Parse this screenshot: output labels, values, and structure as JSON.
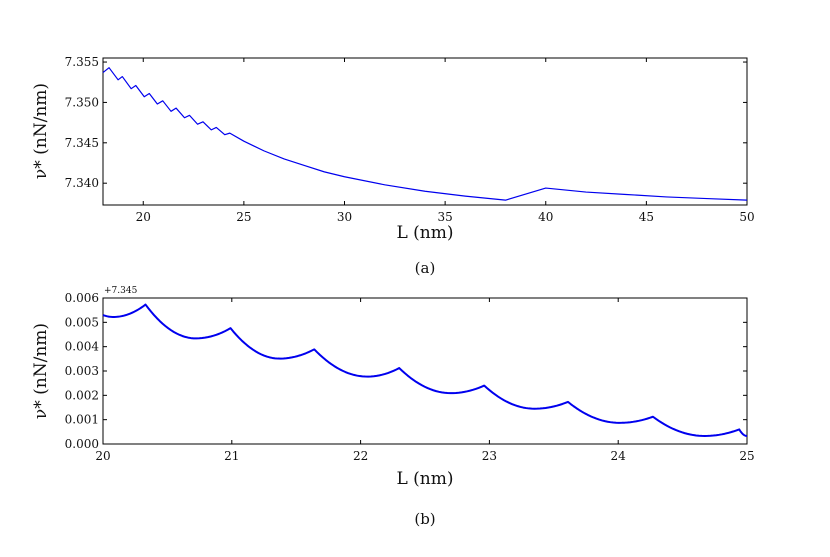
{
  "chart_data": [
    {
      "panel": "a",
      "type": "line",
      "caption": "(a)",
      "xlabel": "L (nm)",
      "ylabel": "ν* (nN/nm)",
      "xlim": [
        18,
        50
      ],
      "ylim": [
        7.3373,
        7.3555
      ],
      "xticks": [
        20,
        25,
        30,
        35,
        40,
        45,
        50
      ],
      "yticks": [
        7.34,
        7.345,
        7.35,
        7.355
      ],
      "ytick_labels": [
        "7.340",
        "7.345",
        "7.350",
        "7.355"
      ],
      "color": "#0000ee",
      "series": [
        {
          "x": [
            18.0,
            18.3,
            18.3,
            18.75,
            18.96,
            18.96,
            19.4,
            19.63,
            19.63,
            20.05,
            20.3,
            20.3,
            20.7,
            20.97,
            20.97,
            21.38,
            21.63,
            21.63,
            22.05,
            22.3,
            22.3,
            22.7,
            22.97,
            22.97,
            23.38,
            23.63,
            23.63,
            24.05,
            24.3,
            24.3,
            25.0,
            26.0,
            27.0,
            28.0,
            29.0,
            30.0,
            32.0,
            34.0,
            36.0,
            38.0,
            40.0,
            42.0,
            44.0,
            46.0,
            48.0,
            50.0
          ],
          "y": [
            7.3537,
            7.3543,
            7.3543,
            7.3528,
            7.3532,
            7.3532,
            7.3517,
            7.3521,
            7.3521,
            7.3507,
            7.3511,
            7.3511,
            7.3498,
            7.3502,
            7.3502,
            7.3489,
            7.3493,
            7.3493,
            7.3481,
            7.3484,
            7.3484,
            7.3473,
            7.3476,
            7.3476,
            7.3466,
            7.3469,
            7.3469,
            7.346,
            7.3462,
            7.3462,
            7.3452,
            7.344,
            7.343,
            7.3422,
            7.3414,
            7.3408,
            7.3398,
            7.339,
            7.3384,
            7.3379,
            7.3394,
            7.3389,
            7.3386,
            7.3383,
            7.3381,
            7.3379
          ]
        }
      ]
    },
    {
      "panel": "b",
      "type": "line",
      "caption": "(b)",
      "xlabel": "L (nm)",
      "ylabel": "ν* (nN/nm)",
      "offset_text": "+7.345",
      "xlim": [
        20,
        25
      ],
      "ylim": [
        0.0,
        0.006
      ],
      "xticks": [
        20,
        21,
        22,
        23,
        24,
        25
      ],
      "yticks": [
        0.0,
        0.001,
        0.002,
        0.003,
        0.004,
        0.005,
        0.006
      ],
      "ytick_labels": [
        "0.000",
        "0.001",
        "0.002",
        "0.003",
        "0.004",
        "0.005",
        "0.006"
      ],
      "color": "#0000ee",
      "series": [
        {
          "segments": [
            {
              "x_start": 20.0,
              "x_end": 20.33,
              "x_min": 20.08,
              "y_start": 0.0053,
              "y_min": 0.00522,
              "y_end": 0.00573
            },
            {
              "x_start": 20.33,
              "x_end": 20.99,
              "x_min": 20.72,
              "y_start": 0.00573,
              "y_min": 0.00434,
              "y_end": 0.00476
            },
            {
              "x_start": 20.99,
              "x_end": 21.64,
              "x_min": 21.37,
              "y_start": 0.00476,
              "y_min": 0.00351,
              "y_end": 0.00389
            },
            {
              "x_start": 21.64,
              "x_end": 22.3,
              "x_min": 22.05,
              "y_start": 0.00389,
              "y_min": 0.00277,
              "y_end": 0.00312
            },
            {
              "x_start": 22.3,
              "x_end": 22.96,
              "x_min": 22.7,
              "y_start": 0.00312,
              "y_min": 0.00209,
              "y_end": 0.0024
            },
            {
              "x_start": 22.96,
              "x_end": 23.61,
              "x_min": 23.35,
              "y_start": 0.0024,
              "y_min": 0.00145,
              "y_end": 0.00173
            },
            {
              "x_start": 23.61,
              "x_end": 24.27,
              "x_min": 24.01,
              "y_start": 0.00173,
              "y_min": 0.00087,
              "y_end": 0.00112
            },
            {
              "x_start": 24.27,
              "x_end": 24.94,
              "x_min": 24.67,
              "y_start": 0.00112,
              "y_min": 0.00033,
              "y_end": 0.0006
            },
            {
              "x_start": 24.94,
              "x_end": 25.0,
              "x_min": 25.0,
              "y_start": 0.0006,
              "y_min": 0.00033,
              "y_end": 0.00033
            }
          ]
        }
      ]
    }
  ]
}
